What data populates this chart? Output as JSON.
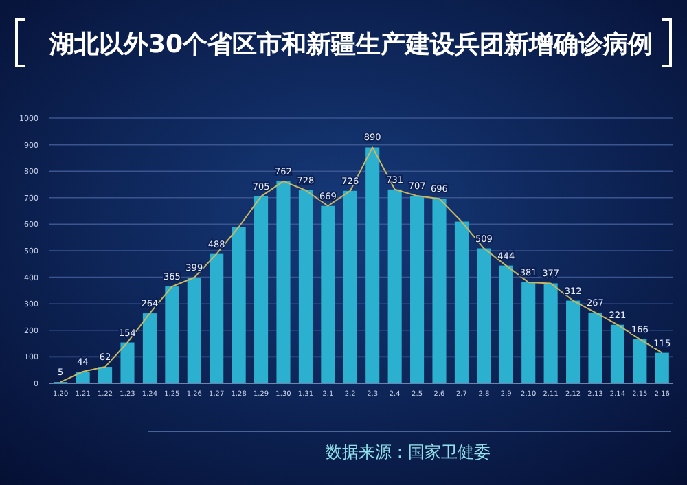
{
  "chart_data": {
    "type": "bar",
    "title": "湖北以外30个省区市和新疆生产建设兵团新增确诊病例",
    "categories": [
      "1.20",
      "1.21",
      "1.22",
      "1.23",
      "1.24",
      "1.25",
      "1.26",
      "1.27",
      "1.28",
      "1.29",
      "1.30",
      "1.31",
      "2.1",
      "2.2",
      "2.3",
      "2.4",
      "2.5",
      "2.6",
      "2.7",
      "2.8",
      "2.9",
      "2.10",
      "2.11",
      "2.12",
      "2.13",
      "2.14",
      "2.15",
      "2.16"
    ],
    "series": [
      {
        "color": "#2bb0d0",
        "values": [
          5,
          44,
          62,
          154,
          264,
          365,
          399,
          488,
          590,
          705,
          762,
          728,
          669,
          726,
          890,
          731,
          707,
          696,
          610,
          509,
          444,
          381,
          377,
          312,
          267,
          221,
          166,
          115
        ],
        "value_labels": [
          "5",
          "44",
          "62",
          "154",
          "264",
          "365",
          "399",
          "488",
          null,
          "705",
          "762",
          "728",
          "669",
          "726",
          "890",
          "731",
          "707",
          "696",
          null,
          "509",
          "444",
          "381",
          "377",
          "312",
          "267",
          "221",
          "166",
          "115"
        ]
      },
      {
        "type": "line",
        "color": "#c9b862",
        "values": [
          5,
          44,
          62,
          154,
          264,
          365,
          399,
          488,
          590,
          705,
          762,
          728,
          669,
          726,
          890,
          731,
          707,
          696,
          610,
          509,
          444,
          381,
          377,
          312,
          267,
          221,
          166,
          115
        ]
      }
    ],
    "ylim": [
      0,
      1000
    ],
    "yticks": [
      0,
      100,
      200,
      300,
      400,
      500,
      600,
      700,
      800,
      900,
      1000
    ],
    "grid": "y",
    "annotations": [
      "数据来源：国家卫健委"
    ]
  }
}
